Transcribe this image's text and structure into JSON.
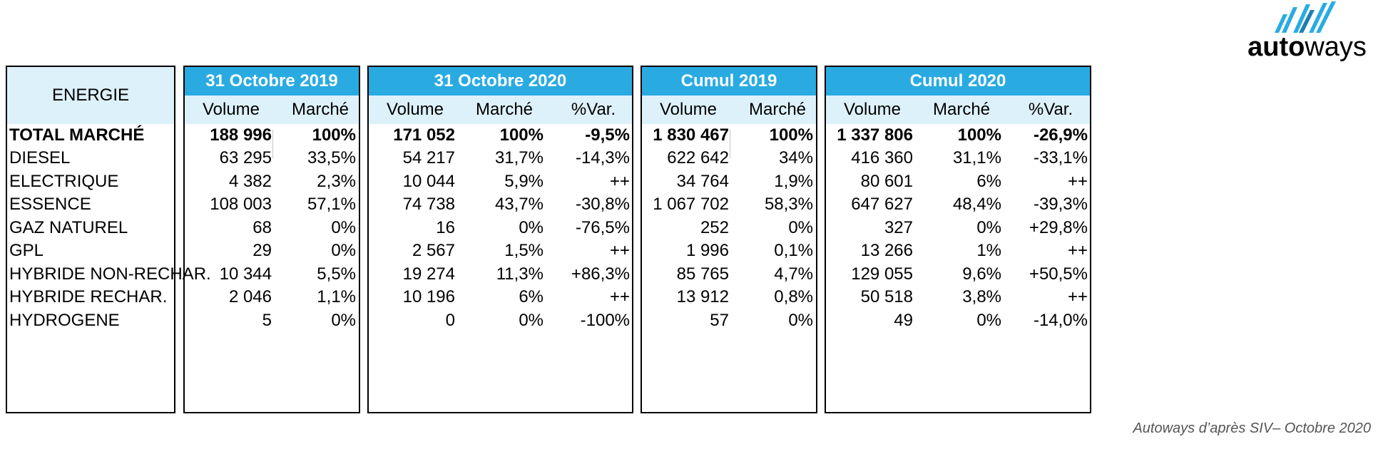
{
  "logo": {
    "bold": "auto",
    "light": "ways",
    "color": "#29abe2"
  },
  "energy_header": "ENERGIE",
  "blocks": [
    {
      "title": "31 Octobre 2019",
      "cols": [
        "Volume",
        "Marché"
      ]
    },
    {
      "title": "31 Octobre 2020",
      "cols": [
        "Volume",
        "Marché",
        "%Var."
      ]
    },
    {
      "title": "Cumul 2019",
      "cols": [
        "Volume",
        "Marché"
      ]
    },
    {
      "title": "Cumul 2020",
      "cols": [
        "Volume",
        "Marché",
        "%Var."
      ]
    }
  ],
  "rows": [
    {
      "label": "TOTAL MARCHÉ",
      "bold": true,
      "b1": [
        "188 996",
        "100%"
      ],
      "b2": [
        "171 052",
        "100%",
        "-9,5%"
      ],
      "b3": [
        "1 830 467",
        "100%"
      ],
      "b4": [
        "1 337 806",
        "100%",
        "-26,9%"
      ]
    },
    {
      "label": "DIESEL",
      "b1": [
        "63 295",
        "33,5%"
      ],
      "b2": [
        "54 217",
        "31,7%",
        "-14,3%"
      ],
      "b3": [
        "622 642",
        "34%"
      ],
      "b4": [
        "416 360",
        "31,1%",
        "-33,1%"
      ]
    },
    {
      "label": "ELECTRIQUE",
      "b1": [
        "4 382",
        "2,3%"
      ],
      "b2": [
        "10 044",
        "5,9%",
        "++"
      ],
      "b3": [
        "34 764",
        "1,9%"
      ],
      "b4": [
        "80 601",
        "6%",
        "++"
      ]
    },
    {
      "label": "ESSENCE",
      "b1": [
        "108 003",
        "57,1%"
      ],
      "b2": [
        "74 738",
        "43,7%",
        "-30,8%"
      ],
      "b3": [
        "1 067 702",
        "58,3%"
      ],
      "b4": [
        "647 627",
        "48,4%",
        "-39,3%"
      ]
    },
    {
      "label": "GAZ NATUREL",
      "b1": [
        "68",
        "0%"
      ],
      "b2": [
        "16",
        "0%",
        "-76,5%"
      ],
      "b3": [
        "252",
        "0%"
      ],
      "b4": [
        "327",
        "0%",
        "+29,8%"
      ]
    },
    {
      "label": "GPL",
      "b1": [
        "29",
        "0%"
      ],
      "b2": [
        "2 567",
        "1,5%",
        "++"
      ],
      "b3": [
        "1 996",
        "0,1%"
      ],
      "b4": [
        "13 266",
        "1%",
        "++"
      ]
    },
    {
      "label": "HYBRIDE NON-RECHAR.",
      "b1": [
        "10 344",
        "5,5%"
      ],
      "b2": [
        "19 274",
        "11,3%",
        "+86,3%"
      ],
      "b3": [
        "85 765",
        "4,7%"
      ],
      "b4": [
        "129 055",
        "9,6%",
        "+50,5%"
      ]
    },
    {
      "label": "HYBRIDE RECHAR.",
      "b1": [
        "2 046",
        "1,1%"
      ],
      "b2": [
        "10 196",
        "6%",
        "++"
      ],
      "b3": [
        "13 912",
        "0,8%"
      ],
      "b4": [
        "50 518",
        "3,8%",
        "++"
      ]
    },
    {
      "label": "HYDROGENE",
      "b1": [
        "5",
        "0%"
      ],
      "b2": [
        "0",
        "0%",
        "-100%"
      ],
      "b3": [
        "57",
        "0%"
      ],
      "b4": [
        "49",
        "0%",
        "-14,0%"
      ]
    }
  ],
  "source": "Autoways d’après SIV– Octobre 2020",
  "colors": {
    "header": "#29abe2",
    "subheader": "#ddf1fa"
  }
}
